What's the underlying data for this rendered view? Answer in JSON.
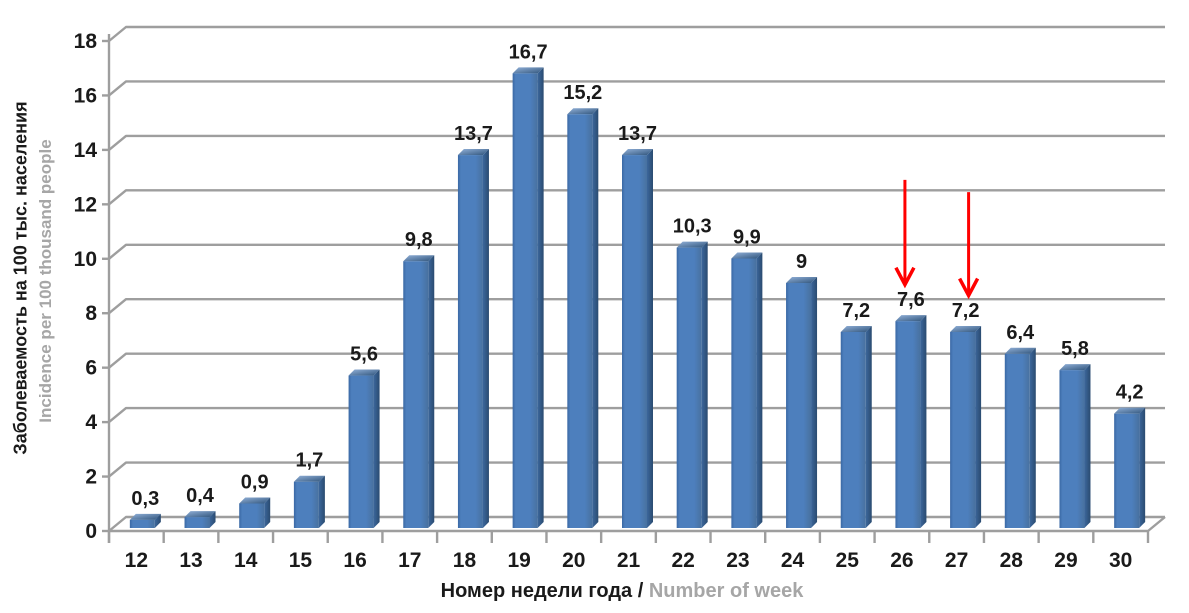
{
  "axis_titles": {
    "y_ru": "Заболеваемость  на 100 тыс. населения",
    "y_en": "Incidence per 100 thousand people",
    "x_ru": "Номер недели года /",
    "x_en": "Number of week"
  },
  "chart_data": {
    "type": "bar",
    "title": "",
    "xlabel": "Номер недели года / Number of week",
    "ylabel": "Заболеваемость на 100 тыс. населения / Incidence per 100 thousand people",
    "categories": [
      "12",
      "13",
      "14",
      "15",
      "16",
      "17",
      "18",
      "19",
      "20",
      "21",
      "22",
      "23",
      "24",
      "25",
      "26",
      "27",
      "28",
      "29",
      "30"
    ],
    "values": [
      0.3,
      0.4,
      0.9,
      1.7,
      5.6,
      9.8,
      13.7,
      16.7,
      15.2,
      13.7,
      10.3,
      9.9,
      9,
      7.2,
      7.6,
      7.2,
      6.4,
      5.8,
      4.2
    ],
    "value_labels": [
      "0,3",
      "0,4",
      "0,9",
      "1,7",
      "5,6",
      "9,8",
      "13,7",
      "16,7",
      "15,2",
      "13,7",
      "10,3",
      "9,9",
      "9",
      "7,2",
      "7,6",
      "7,2",
      "6,4",
      "5,8",
      "4,2"
    ],
    "ylim": [
      0,
      18
    ],
    "ytick_step": 2,
    "grid": true,
    "legend": "none",
    "effect": "3d-bars",
    "annotations": [
      {
        "type": "arrow-down",
        "category": "26",
        "from_value": 12.9,
        "to_value": 9.05,
        "x_offset": -6
      },
      {
        "type": "arrow-down",
        "category": "27",
        "from_value": 12.45,
        "to_value": 8.65,
        "x_offset": 3
      }
    ],
    "style": {
      "bar_front": "#4d7fbd",
      "bar_front_edge": "#3a68a4",
      "bar_front_right": "#48719f",
      "bar_side_light": "#3c679c",
      "bar_side_dark": "#2a4b70",
      "bar_top_light": "#93b2da",
      "bar_top_dark": "#2f547b",
      "gridline": "#9e9e9e",
      "text": "#1a1a1a",
      "muted": "#a6a6a6",
      "arrow": "#ff0000",
      "background": "#ffffff"
    }
  }
}
